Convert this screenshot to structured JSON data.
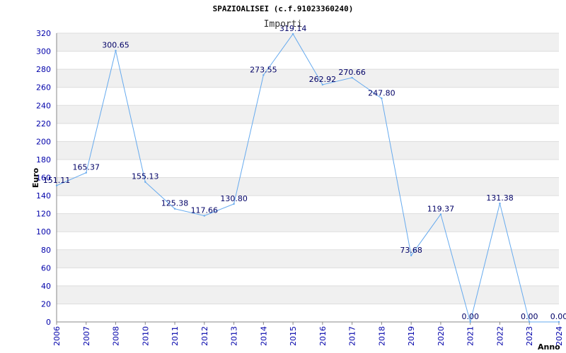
{
  "chart_data": {
    "type": "line",
    "title": "SPAZIOALISEI (c.f.91023360240)",
    "legend": "Importi",
    "xlabel": "Anno",
    "ylabel": "Euro",
    "ylim": [
      0,
      320
    ],
    "ytick_step": 20,
    "x_ticks": [
      "2006",
      "2007",
      "2008",
      "2010",
      "2011",
      "2012",
      "2013",
      "2014",
      "2015",
      "2016",
      "2017",
      "2018",
      "2019",
      "2020",
      "2021",
      "2022",
      "2023",
      "2024"
    ],
    "values": [
      151.11,
      165.37,
      300.65,
      155.13,
      125.38,
      117.66,
      130.8,
      273.55,
      319.14,
      262.92,
      270.66,
      247.8,
      73.68,
      119.37,
      0.0,
      131.38,
      0.0,
      0.0
    ],
    "value_labels": [
      "151.11",
      "165.37",
      "300.65",
      "155.13",
      "125.38",
      "117.66",
      "130.80",
      "273.55",
      "319.14",
      "262.92",
      "270.66",
      "247.80",
      "73.68",
      "119.37",
      "0.00",
      "131.38",
      "0.00",
      "0.00"
    ],
    "grid": true,
    "line_color": "#66aaee",
    "band_color": "#f0f0f0",
    "grid_color": "#dddddd"
  }
}
